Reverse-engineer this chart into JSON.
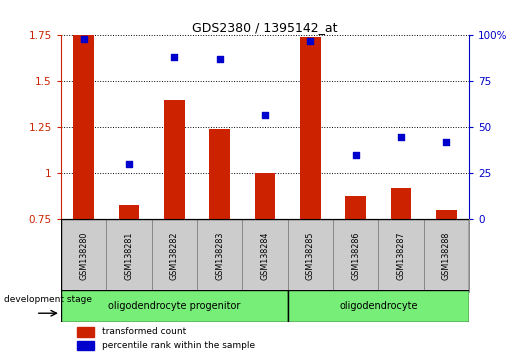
{
  "title": "GDS2380 / 1395142_at",
  "samples": [
    "GSM138280",
    "GSM138281",
    "GSM138282",
    "GSM138283",
    "GSM138284",
    "GSM138285",
    "GSM138286",
    "GSM138287",
    "GSM138288"
  ],
  "transformed_count": [
    1.75,
    0.83,
    1.4,
    1.24,
    1.0,
    1.74,
    0.88,
    0.92,
    0.8
  ],
  "percentile_rank": [
    98,
    30,
    88,
    87,
    57,
    97,
    35,
    45,
    42
  ],
  "ylim_left": [
    0.75,
    1.75
  ],
  "ylim_right": [
    0,
    100
  ],
  "yticks_left": [
    0.75,
    1.0,
    1.25,
    1.5,
    1.75
  ],
  "ytick_labels_left": [
    "0.75",
    "1",
    "1.25",
    "1.5",
    "1.75"
  ],
  "yticks_right": [
    0,
    25,
    50,
    75,
    100
  ],
  "ytick_labels_right": [
    "0",
    "25",
    "50",
    "75",
    "100%"
  ],
  "groups": [
    {
      "label": "oligodendrocyte progenitor",
      "start": 0,
      "end": 4
    },
    {
      "label": "oligodendrocyte",
      "start": 5,
      "end": 8
    }
  ],
  "bar_color": "#cc2200",
  "dot_color": "#0000cc",
  "bar_width": 0.45,
  "bg_color": "#ffffff",
  "sample_box_color": "#cccccc",
  "group_fill_color": "#77ee77",
  "group_border_color": "#000000",
  "ylabel_left_color": "#cc2200",
  "ylabel_right_color": "#0000cc",
  "legend_items": [
    {
      "label": "transformed count",
      "color": "#cc2200"
    },
    {
      "label": "percentile rank within the sample",
      "color": "#0000cc"
    }
  ],
  "dev_stage_label": "development stage"
}
